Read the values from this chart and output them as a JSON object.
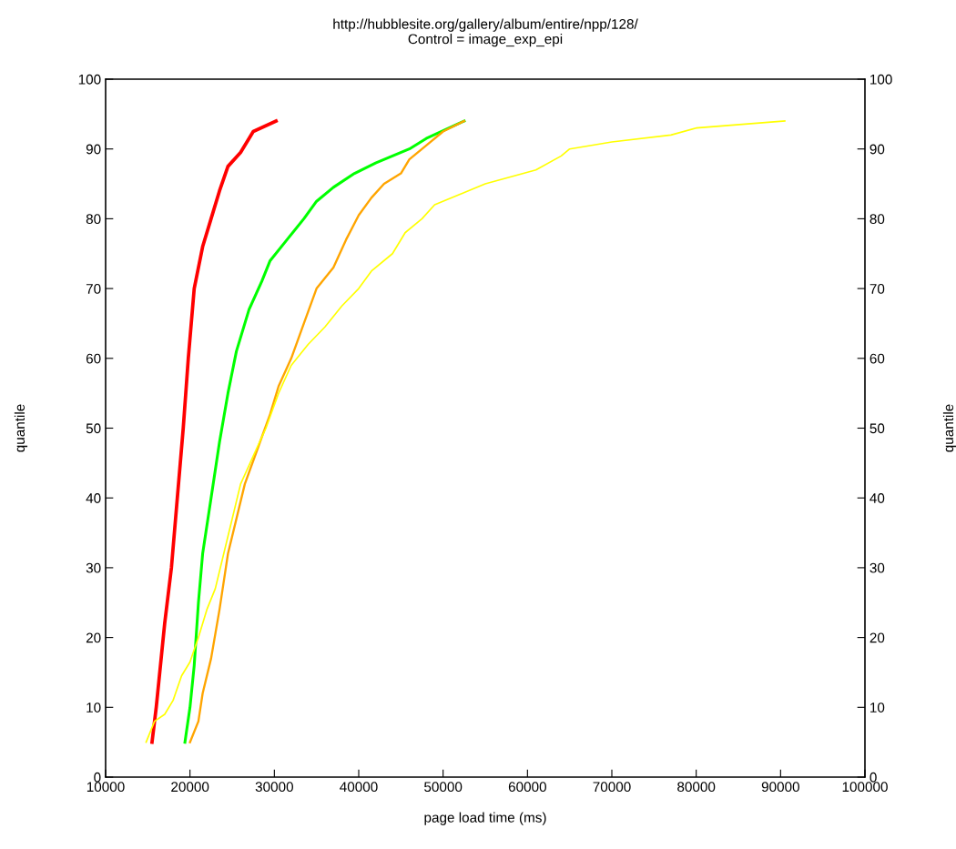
{
  "chart_data": {
    "type": "line",
    "title": "http://hubblesite.org/gallery/album/entire/npp/128/",
    "subtitle": "Control = image_exp_epi",
    "xlabel": "page load time (ms)",
    "ylabel": "quantile",
    "y2label": "quantile",
    "xlim": [
      10000,
      100000
    ],
    "xticks": [
      10000,
      20000,
      30000,
      40000,
      50000,
      60000,
      70000,
      80000,
      90000,
      100000
    ],
    "ylim": [
      0,
      100
    ],
    "yticks": [
      0,
      10,
      20,
      30,
      40,
      50,
      60,
      70,
      80,
      90,
      100
    ],
    "y2lim": [
      0,
      100
    ],
    "y2ticks": [
      0,
      10,
      20,
      30,
      40,
      50,
      60,
      70,
      80,
      90,
      100
    ],
    "grid": false,
    "legend": false,
    "line_style": "solid",
    "marker": "none",
    "series": [
      {
        "color": "#ff0000",
        "x": [
          15500,
          16000,
          17000,
          17800,
          18500,
          19200,
          19800,
          20500,
          21500,
          22500,
          23500,
          24500,
          26000,
          27500,
          30200
        ],
        "values": [
          5,
          10,
          22,
          30,
          40,
          50,
          60,
          70,
          76,
          80,
          84,
          87.5,
          89.5,
          92.5,
          94
        ]
      },
      {
        "color": "#00ff00",
        "x": [
          19400,
          20000,
          20500,
          21000,
          21500,
          22500,
          23500,
          24500,
          25500,
          27000,
          28500,
          29500,
          31500,
          33500,
          35000,
          37000,
          39500,
          42000,
          46000,
          48000,
          52500
        ],
        "values": [
          5,
          10,
          16,
          25,
          32,
          40,
          48,
          55,
          61,
          67,
          71,
          74,
          77,
          80,
          82.5,
          84.5,
          86.5,
          88,
          90,
          91.5,
          94
        ]
      },
      {
        "color": "#ffa500",
        "x": [
          20000,
          21000,
          21500,
          22500,
          23500,
          24500,
          25500,
          26500,
          28000,
          29500,
          30500,
          32000,
          33500,
          35000,
          37000,
          38500,
          40000,
          41500,
          43000,
          45000,
          46000,
          48000,
          50000,
          52500
        ],
        "values": [
          5,
          8,
          12,
          17,
          24,
          32,
          37,
          42,
          47,
          52,
          56,
          60,
          65,
          70,
          73,
          77,
          80.5,
          83,
          85,
          86.5,
          88.5,
          90.5,
          92.5,
          94
        ]
      },
      {
        "color": "#ffff00",
        "x": [
          14800,
          15800,
          17000,
          18000,
          19000,
          20000,
          21000,
          22000,
          23000,
          24000,
          25000,
          26000,
          27500,
          29000,
          30500,
          32000,
          34000,
          36000,
          38000,
          40000,
          41500,
          44000,
          45500,
          47500,
          49000,
          52000,
          55000,
          61000,
          64000,
          65000,
          70000,
          77000,
          80000,
          90500
        ],
        "values": [
          5,
          8,
          9,
          11,
          14.5,
          16.5,
          20,
          24,
          27,
          32,
          37,
          42,
          46,
          50,
          55,
          59,
          62,
          64.5,
          67.5,
          70,
          72.5,
          75,
          78,
          80,
          82,
          83.5,
          85,
          87,
          89,
          90,
          91,
          92,
          93,
          94
        ]
      }
    ]
  }
}
